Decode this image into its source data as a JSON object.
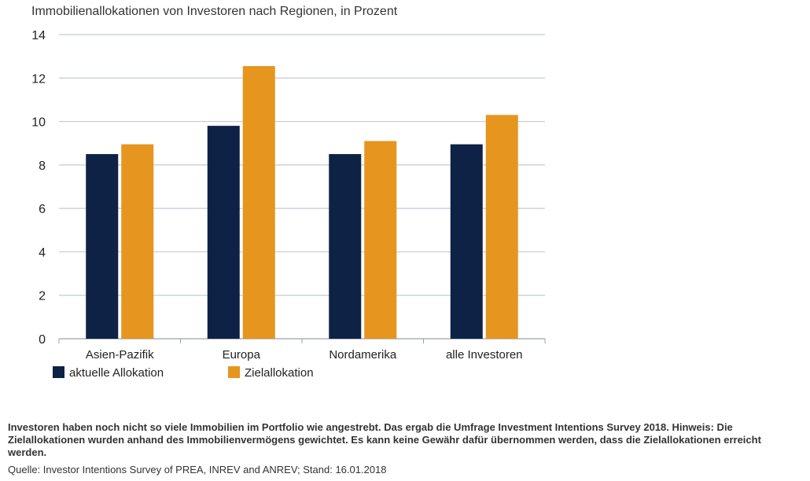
{
  "chart_data": {
    "type": "bar",
    "title": "Immobilienallokationen von Investoren nach Regionen, in Prozent",
    "categories": [
      "Asien-Pazifik",
      "Europa",
      "Nordamerika",
      "alle Investoren"
    ],
    "series": [
      {
        "name": "aktuelle Allokation",
        "color": "#0d2244",
        "values": [
          8.5,
          9.8,
          8.5,
          8.95
        ]
      },
      {
        "name": "Zielallokation",
        "color": "#e6951e",
        "values": [
          8.95,
          12.55,
          9.1,
          10.3
        ]
      }
    ],
    "yticks": [
      "0",
      "2",
      "4",
      "6",
      "8",
      "10",
      "12",
      "14"
    ],
    "ylim": [
      0,
      14
    ],
    "grid": true,
    "legend_position": "bottom-left",
    "xlabel": "",
    "ylabel": ""
  },
  "caption": "Investoren haben noch nicht so viele Immobilien im Portfolio wie angestrebt. Das ergab die Umfrage Investment Intentions Survey 2018. Hinweis: Die Zielallokationen wurden anhand des Immobilienvermögens gewichtet. Es kann keine Gewähr dafür übernommen werden, dass die Zielallokationen erreicht werden.",
  "source": "Quelle: Investor Intentions Survey of PREA, INREV and ANREV; Stand: 16.01.2018"
}
